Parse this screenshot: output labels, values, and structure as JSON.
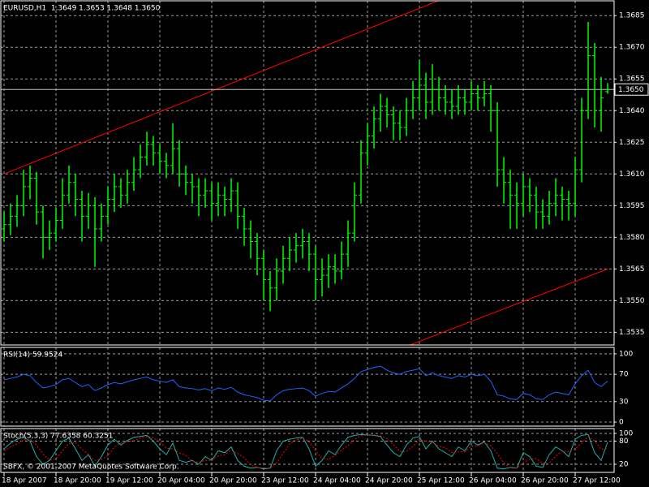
{
  "chart_data": [
    {
      "type": "ohlc",
      "title": "EURUSD,H1  1.3649 1.3653 1.3648 1.3650",
      "color": "#00ff00",
      "grid": true,
      "open": [
        1.3584,
        1.3586,
        1.359,
        1.3595,
        1.3604,
        1.3608,
        1.3592,
        1.358,
        1.3582,
        1.3588,
        1.36,
        1.3606,
        1.3598,
        1.359,
        1.3595,
        1.3584,
        1.359,
        1.3598,
        1.3604,
        1.36,
        1.3606,
        1.3612,
        1.3618,
        1.3624,
        1.362,
        1.3616,
        1.3614,
        1.3622,
        1.361,
        1.3606,
        1.3604,
        1.36,
        1.3602,
        1.3596,
        1.36,
        1.3598,
        1.3602,
        1.359,
        1.3584,
        1.3578,
        1.357,
        1.356,
        1.3556,
        1.3564,
        1.357,
        1.3574,
        1.3576,
        1.3578,
        1.3572,
        1.356,
        1.3562,
        1.3566,
        1.3564,
        1.3572,
        1.3582,
        1.36,
        1.362,
        1.3628,
        1.3636,
        1.3642,
        1.3638,
        1.3634,
        1.3632,
        1.364,
        1.3646,
        1.3652,
        1.3644,
        1.365,
        1.3646,
        1.3644,
        1.3642,
        1.3646,
        1.3644,
        1.3648,
        1.3646,
        1.3648,
        1.364,
        1.3612,
        1.3606,
        1.36,
        1.3596,
        1.3604,
        1.36,
        1.3592,
        1.359,
        1.3596,
        1.36,
        1.3598,
        1.3596,
        1.3612,
        1.364,
        1.3666,
        1.364,
        1.3649
      ],
      "high": [
        1.3592,
        1.3596,
        1.36,
        1.3612,
        1.3614,
        1.3611,
        1.3595,
        1.3588,
        1.3594,
        1.3608,
        1.3614,
        1.361,
        1.3602,
        1.3601,
        1.3599,
        1.3596,
        1.3604,
        1.361,
        1.3608,
        1.3612,
        1.3618,
        1.3624,
        1.363,
        1.3628,
        1.3624,
        1.362,
        1.3634,
        1.3626,
        1.3614,
        1.361,
        1.3608,
        1.3608,
        1.3606,
        1.3606,
        1.3604,
        1.3608,
        1.3606,
        1.3594,
        1.3588,
        1.3582,
        1.3574,
        1.3564,
        1.357,
        1.3576,
        1.358,
        1.3582,
        1.3584,
        1.3582,
        1.3576,
        1.357,
        1.3572,
        1.3572,
        1.3578,
        1.3588,
        1.3606,
        1.3626,
        1.3634,
        1.3642,
        1.3648,
        1.3646,
        1.3642,
        1.364,
        1.3646,
        1.3654,
        1.3664,
        1.3658,
        1.3662,
        1.3656,
        1.3652,
        1.365,
        1.3652,
        1.365,
        1.3654,
        1.3652,
        1.3654,
        1.3652,
        1.3644,
        1.3618,
        1.3612,
        1.3606,
        1.361,
        1.3608,
        1.3604,
        1.3598,
        1.3602,
        1.3608,
        1.3604,
        1.3602,
        1.3618,
        1.3646,
        1.3682,
        1.3672,
        1.3656,
        1.3653
      ],
      "low": [
        1.3578,
        1.3581,
        1.3585,
        1.359,
        1.3598,
        1.3586,
        1.357,
        1.3574,
        1.3578,
        1.3584,
        1.3596,
        1.359,
        1.3578,
        1.3584,
        1.3566,
        1.3578,
        1.3586,
        1.3592,
        1.3594,
        1.3596,
        1.3602,
        1.3608,
        1.3614,
        1.3614,
        1.361,
        1.3608,
        1.361,
        1.3604,
        1.36,
        1.3596,
        1.359,
        1.3594,
        1.3588,
        1.359,
        1.359,
        1.3592,
        1.3584,
        1.3576,
        1.357,
        1.3562,
        1.355,
        1.3545,
        1.355,
        1.3558,
        1.3564,
        1.3568,
        1.357,
        1.3564,
        1.355,
        1.3552,
        1.3556,
        1.3558,
        1.356,
        1.3566,
        1.3578,
        1.3596,
        1.3614,
        1.3622,
        1.363,
        1.3632,
        1.3626,
        1.3626,
        1.3628,
        1.3636,
        1.364,
        1.3636,
        1.3638,
        1.364,
        1.3638,
        1.3636,
        1.3638,
        1.3638,
        1.364,
        1.364,
        1.3642,
        1.363,
        1.3604,
        1.3596,
        1.3584,
        1.3584,
        1.359,
        1.3592,
        1.3584,
        1.3584,
        1.3586,
        1.359,
        1.3588,
        1.3588,
        1.359,
        1.3606,
        1.3636,
        1.3632,
        1.363,
        1.3648
      ],
      "close": [
        1.3586,
        1.359,
        1.3595,
        1.3604,
        1.3608,
        1.3592,
        1.358,
        1.3582,
        1.3588,
        1.36,
        1.3606,
        1.3598,
        1.359,
        1.3595,
        1.3584,
        1.359,
        1.3598,
        1.3604,
        1.36,
        1.3606,
        1.3612,
        1.3618,
        1.3624,
        1.362,
        1.3616,
        1.3614,
        1.3622,
        1.361,
        1.3606,
        1.3604,
        1.36,
        1.3602,
        1.3596,
        1.36,
        1.3598,
        1.3602,
        1.359,
        1.3584,
        1.3578,
        1.357,
        1.356,
        1.3556,
        1.3564,
        1.357,
        1.3574,
        1.3576,
        1.3578,
        1.3572,
        1.356,
        1.3562,
        1.3566,
        1.3564,
        1.3572,
        1.3582,
        1.36,
        1.362,
        1.3628,
        1.3636,
        1.3642,
        1.3638,
        1.3634,
        1.3632,
        1.364,
        1.3646,
        1.3652,
        1.3644,
        1.365,
        1.3646,
        1.3644,
        1.3642,
        1.3646,
        1.3644,
        1.3648,
        1.3646,
        1.3648,
        1.364,
        1.3612,
        1.3606,
        1.36,
        1.3596,
        1.3604,
        1.36,
        1.3592,
        1.359,
        1.3596,
        1.36,
        1.3598,
        1.3596,
        1.3612,
        1.364,
        1.3666,
        1.364,
        1.3646,
        1.365
      ],
      "ylim": [
        1.3529,
        1.3692
      ],
      "yticks": [
        1.3535,
        {
          "value": 1.355,
          "label": "1.3550"
        },
        1.3565,
        {
          "value": 1.358,
          "label": "1.3580"
        },
        1.3595,
        {
          "value": 1.361,
          "label": "1.3610"
        },
        1.3625,
        {
          "value": 1.364,
          "label": "1.3640"
        },
        1.3655,
        {
          "value": 1.367,
          "label": "1.3670"
        },
        1.3685
      ],
      "xticks": [
        {
          "value": 0,
          "label": "18 Apr 2007"
        },
        {
          "value": 8,
          "label": "18 Apr 20:00"
        },
        {
          "value": 16,
          "label": "19 Apr 12:00"
        },
        {
          "value": 24,
          "label": "20 Apr 04:00"
        },
        {
          "value": 32,
          "label": "20 Apr 20:00"
        },
        {
          "value": 40,
          "label": "23 Apr 12:00"
        },
        {
          "value": 48,
          "label": "24 Apr 04:00"
        },
        {
          "value": 56,
          "label": "24 Apr 20:00"
        },
        {
          "value": 64,
          "label": "25 Apr 12:00"
        },
        {
          "value": 72,
          "label": "26 Apr 04:00"
        },
        {
          "value": 80,
          "label": "26 Apr 20:00"
        },
        {
          "value": 88,
          "label": "27 Apr 12:00"
        }
      ],
      "trendlines": [
        {
          "color": "#ff0000",
          "points": [
            [
              0,
              1.361
            ],
            [
              93,
              1.3724
            ]
          ]
        },
        {
          "color": "#ff0000",
          "points": [
            [
              0,
              1.3455
            ],
            [
              93,
              1.3565
            ]
          ]
        }
      ],
      "current_price": {
        "value": 1.365,
        "label": "1.3650"
      }
    },
    {
      "type": "line",
      "title": "RSI(14) 59.9524",
      "grid": true,
      "ylim": [
        -5.9,
        109.4
      ],
      "yticks": [
        0,
        30,
        70,
        100
      ],
      "series": [
        {
          "color": "#1e64ff",
          "values": [
            62,
            64,
            66,
            70,
            68,
            58,
            50,
            52,
            55,
            62,
            64,
            58,
            52,
            55,
            46,
            50,
            55,
            58,
            56,
            59,
            62,
            64,
            66,
            62,
            60,
            58,
            62,
            52,
            50,
            49,
            47,
            49,
            46,
            50,
            48,
            51,
            44,
            40,
            38,
            36,
            32,
            31,
            40,
            46,
            48,
            49,
            50,
            46,
            38,
            42,
            45,
            44,
            50,
            56,
            64,
            74,
            77,
            80,
            82,
            76,
            72,
            70,
            74,
            76,
            78,
            68,
            72,
            68,
            66,
            64,
            68,
            66,
            70,
            68,
            70,
            60,
            40,
            38,
            34,
            33,
            42,
            40,
            34,
            33,
            40,
            44,
            42,
            40,
            56,
            68,
            76,
            58,
            52,
            59.9524
          ]
        }
      ]
    },
    {
      "type": "line",
      "title": "Stoch(5,3,3) 77.6358 60.3251",
      "annotation": "SBFX, © 2001-2007 MetaQuotes Software Corp.",
      "grid": true,
      "ylim": [
        -1,
        112.6
      ],
      "yticks": [
        20,
        80,
        100
      ],
      "series": [
        {
          "color": "#20b2aa",
          "values": [
            60,
            75,
            85,
            90,
            80,
            40,
            20,
            30,
            55,
            80,
            88,
            60,
            30,
            45,
            15,
            40,
            70,
            85,
            70,
            82,
            90,
            92,
            95,
            80,
            60,
            45,
            75,
            30,
            25,
            30,
            20,
            40,
            30,
            55,
            50,
            65,
            30,
            15,
            10,
            12,
            8,
            10,
            55,
            80,
            85,
            88,
            90,
            60,
            15,
            30,
            55,
            45,
            70,
            90,
            95,
            97,
            96,
            95,
            92,
            70,
            50,
            40,
            70,
            88,
            92,
            60,
            80,
            60,
            50,
            40,
            65,
            55,
            80,
            70,
            78,
            55,
            10,
            8,
            12,
            10,
            50,
            40,
            15,
            12,
            45,
            65,
            55,
            40,
            85,
            95,
            97,
            50,
            30,
            77.6358
          ]
        },
        {
          "color": "#ff0000",
          "dash": true,
          "values": [
            55,
            65,
            73,
            83,
            85,
            70,
            47,
            30,
            35,
            55,
            74,
            76,
            59,
            45,
            30,
            33,
            42,
            65,
            75,
            79,
            81,
            88,
            92,
            89,
            78,
            62,
            60,
            50,
            43,
            28,
            25,
            30,
            30,
            42,
            45,
            57,
            48,
            37,
            18,
            12,
            10,
            10,
            24,
            48,
            73,
            84,
            88,
            79,
            55,
            35,
            33,
            43,
            57,
            68,
            85,
            94,
            96,
            96,
            94,
            86,
            71,
            53,
            53,
            66,
            83,
            80,
            77,
            67,
            63,
            50,
            52,
            53,
            67,
            68,
            76,
            68,
            48,
            24,
            10,
            10,
            24,
            33,
            35,
            22,
            24,
            41,
            55,
            53,
            60,
            75,
            92,
            81,
            59,
            60.3251
          ]
        }
      ]
    }
  ]
}
